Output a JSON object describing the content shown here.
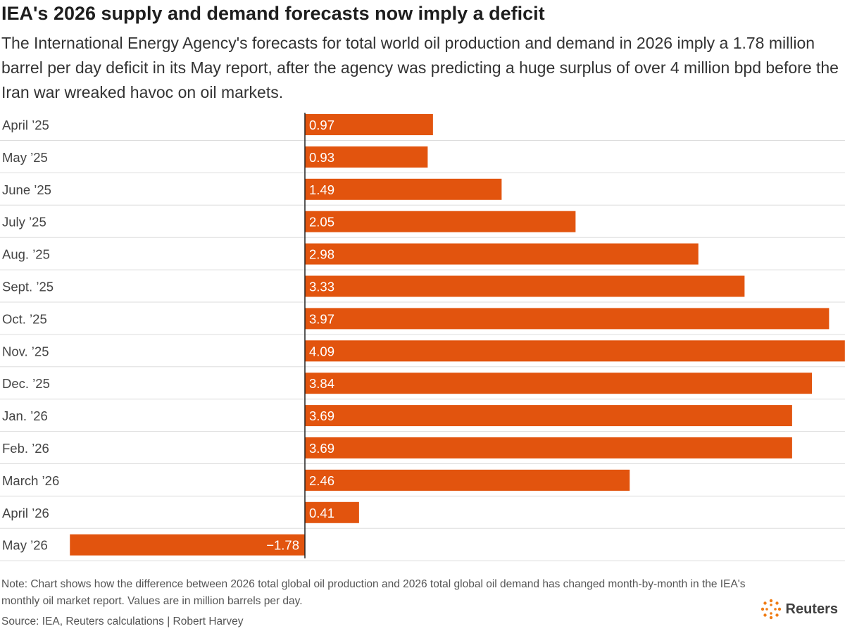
{
  "title": "IEA's 2026 supply and demand forecasts now imply a deficit",
  "subtitle": "The International Energy Agency's forecasts for total world oil production and demand in 2026 imply a 1.78 million barrel per day deficit in its May report, after the agency was predicting a huge surplus of over 4 million bpd before the Iran war wreaked havoc on oil markets.",
  "note": "Note: Chart shows how the difference between 2026 total global oil production and 2026 total global oil demand has changed month-by-month in the IEA's monthly oil market report. Values are in million barrels per day.",
  "source": "Source: IEA, Reuters calculations | Robert Harvey",
  "logo_text": "Reuters",
  "colors": {
    "bar": "#e2540e",
    "zero_line": "#222222",
    "grid": "#dddddd",
    "label": "#444444"
  },
  "chart_data": {
    "type": "bar",
    "orientation": "horizontal",
    "categories": [
      "April ’25",
      "May ’25",
      "June ’25",
      "July ’25",
      "Aug. ’25",
      "Sept. ’25",
      "Oct. ’25",
      "Nov. ’25",
      "Dec. ’25",
      "Jan. ’26",
      "Feb. ’26",
      "March ’26",
      "April ’26",
      "May ’26"
    ],
    "values": [
      0.97,
      0.93,
      1.49,
      2.05,
      2.98,
      3.33,
      3.97,
      4.09,
      3.84,
      3.69,
      3.69,
      2.46,
      0.41,
      -1.78
    ],
    "value_labels": [
      "0.97",
      "0.93",
      "1.49",
      "2.05",
      "2.98",
      "3.33",
      "3.97",
      "4.09",
      "3.84",
      "3.69",
      "3.69",
      "2.46",
      "0.41",
      "−1.78"
    ],
    "xlim": [
      -1.78,
      4.09
    ],
    "grid": true,
    "legend": "none"
  }
}
